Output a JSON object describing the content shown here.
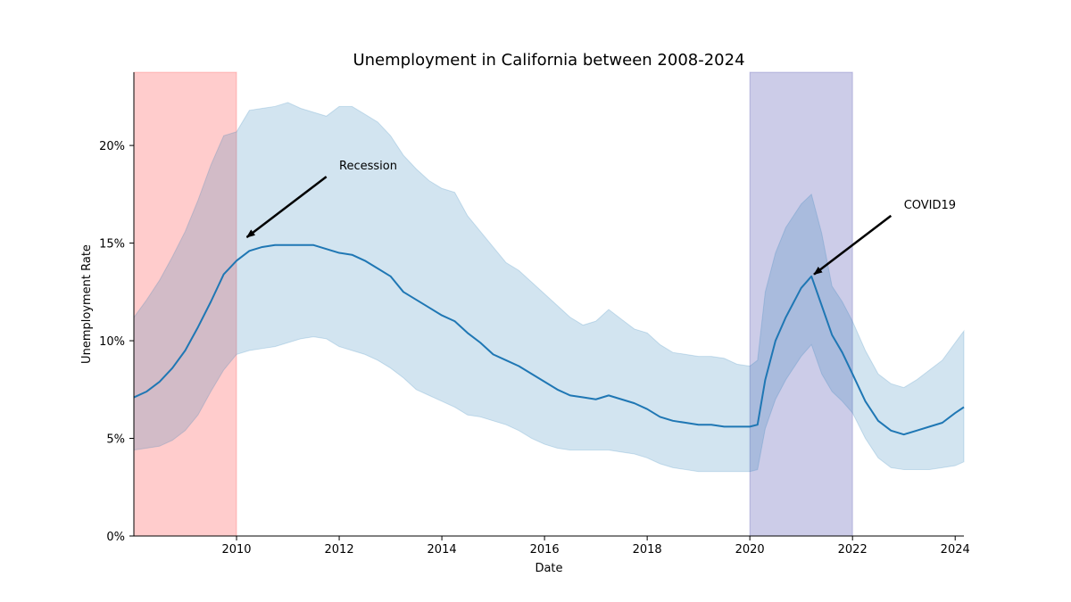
{
  "chart_data": {
    "type": "line",
    "title": "Unemployment in California between 2008-2024",
    "xlabel": "Date",
    "ylabel": "Unemployment Rate",
    "xlim": [
      2008.0,
      2024.17
    ],
    "ylim": [
      0,
      0.2375
    ],
    "grid": false,
    "colors": {
      "line": "#1f77b4",
      "band": "#1f77b4",
      "recession_span": "#ff0000",
      "covid_span": "#00008b",
      "arrow": "#000000"
    },
    "x_ticks": [
      {
        "value": 2010,
        "label": "2010"
      },
      {
        "value": 2012,
        "label": "2012"
      },
      {
        "value": 2014,
        "label": "2014"
      },
      {
        "value": 2016,
        "label": "2016"
      },
      {
        "value": 2018,
        "label": "2018"
      },
      {
        "value": 2020,
        "label": "2020"
      },
      {
        "value": 2022,
        "label": "2022"
      },
      {
        "value": 2024,
        "label": "2024"
      }
    ],
    "y_ticks": [
      {
        "value": 0.0,
        "label": "0%"
      },
      {
        "value": 0.05,
        "label": "5%"
      },
      {
        "value": 0.1,
        "label": "10%"
      },
      {
        "value": 0.15,
        "label": "15%"
      },
      {
        "value": 0.2,
        "label": "20%"
      }
    ],
    "shaded_spans": [
      {
        "x0": 2008.0,
        "x1": 2010.0,
        "color": "#ff0000",
        "opacity": 0.2
      },
      {
        "x0": 2020.0,
        "x1": 2022.0,
        "color": "#00008b",
        "opacity": 0.2
      }
    ],
    "annotations": [
      {
        "text": "Recession",
        "text_x": 2012.0,
        "text_y": 0.19,
        "arrow_tail": [
          2011.75,
          0.184
        ],
        "arrow_head": [
          2010.2,
          0.153
        ]
      },
      {
        "text": "COVID19",
        "text_x": 2023.0,
        "text_y": 0.17,
        "arrow_tail": [
          2022.75,
          0.164
        ],
        "arrow_head": [
          2021.25,
          0.134
        ]
      }
    ],
    "series": [
      {
        "name": "",
        "x": [
          2008.0,
          2008.25,
          2008.5,
          2008.75,
          2009.0,
          2009.25,
          2009.5,
          2009.75,
          2010.0,
          2010.25,
          2010.5,
          2010.75,
          2011.0,
          2011.25,
          2011.5,
          2011.75,
          2012.0,
          2012.25,
          2012.5,
          2012.75,
          2013.0,
          2013.25,
          2013.5,
          2013.75,
          2014.0,
          2014.25,
          2014.5,
          2014.75,
          2015.0,
          2015.25,
          2015.5,
          2015.75,
          2016.0,
          2016.25,
          2016.5,
          2016.75,
          2017.0,
          2017.25,
          2017.5,
          2017.75,
          2018.0,
          2018.25,
          2018.5,
          2018.75,
          2019.0,
          2019.25,
          2019.5,
          2019.75,
          2020.0,
          2020.15,
          2020.3,
          2020.5,
          2020.7,
          2021.0,
          2021.2,
          2021.4,
          2021.6,
          2021.8,
          2022.0,
          2022.25,
          2022.5,
          2022.75,
          2023.0,
          2023.25,
          2023.5,
          2023.75,
          2024.0,
          2024.17
        ],
        "mean": [
          0.071,
          0.074,
          0.079,
          0.086,
          0.095,
          0.107,
          0.12,
          0.134,
          0.141,
          0.146,
          0.148,
          0.149,
          0.149,
          0.149,
          0.149,
          0.147,
          0.145,
          0.144,
          0.141,
          0.137,
          0.133,
          0.125,
          0.121,
          0.117,
          0.113,
          0.11,
          0.104,
          0.099,
          0.093,
          0.09,
          0.087,
          0.083,
          0.079,
          0.075,
          0.072,
          0.071,
          0.07,
          0.072,
          0.07,
          0.068,
          0.065,
          0.061,
          0.059,
          0.058,
          0.057,
          0.057,
          0.056,
          0.056,
          0.056,
          0.057,
          0.08,
          0.1,
          0.112,
          0.127,
          0.133,
          0.118,
          0.103,
          0.094,
          0.083,
          0.069,
          0.059,
          0.054,
          0.052,
          0.054,
          0.056,
          0.058,
          0.063,
          0.066
        ],
        "upper": [
          0.112,
          0.121,
          0.131,
          0.143,
          0.156,
          0.172,
          0.19,
          0.205,
          0.207,
          0.218,
          0.219,
          0.22,
          0.222,
          0.219,
          0.217,
          0.215,
          0.22,
          0.22,
          0.216,
          0.212,
          0.205,
          0.195,
          0.188,
          0.182,
          0.178,
          0.176,
          0.164,
          0.156,
          0.148,
          0.14,
          0.136,
          0.13,
          0.124,
          0.118,
          0.112,
          0.108,
          0.11,
          0.116,
          0.111,
          0.106,
          0.104,
          0.098,
          0.094,
          0.093,
          0.092,
          0.092,
          0.091,
          0.088,
          0.087,
          0.09,
          0.125,
          0.145,
          0.158,
          0.17,
          0.175,
          0.155,
          0.128,
          0.12,
          0.11,
          0.095,
          0.083,
          0.078,
          0.076,
          0.08,
          0.085,
          0.09,
          0.099,
          0.105
        ],
        "lower": [
          0.044,
          0.045,
          0.046,
          0.049,
          0.054,
          0.062,
          0.074,
          0.085,
          0.093,
          0.095,
          0.096,
          0.097,
          0.099,
          0.101,
          0.102,
          0.101,
          0.097,
          0.095,
          0.093,
          0.09,
          0.086,
          0.081,
          0.075,
          0.072,
          0.069,
          0.066,
          0.062,
          0.061,
          0.059,
          0.057,
          0.054,
          0.05,
          0.047,
          0.045,
          0.044,
          0.044,
          0.044,
          0.044,
          0.043,
          0.042,
          0.04,
          0.037,
          0.035,
          0.034,
          0.033,
          0.033,
          0.033,
          0.033,
          0.033,
          0.034,
          0.055,
          0.07,
          0.08,
          0.092,
          0.098,
          0.083,
          0.074,
          0.069,
          0.063,
          0.05,
          0.04,
          0.035,
          0.034,
          0.034,
          0.034,
          0.035,
          0.036,
          0.038
        ]
      }
    ]
  }
}
